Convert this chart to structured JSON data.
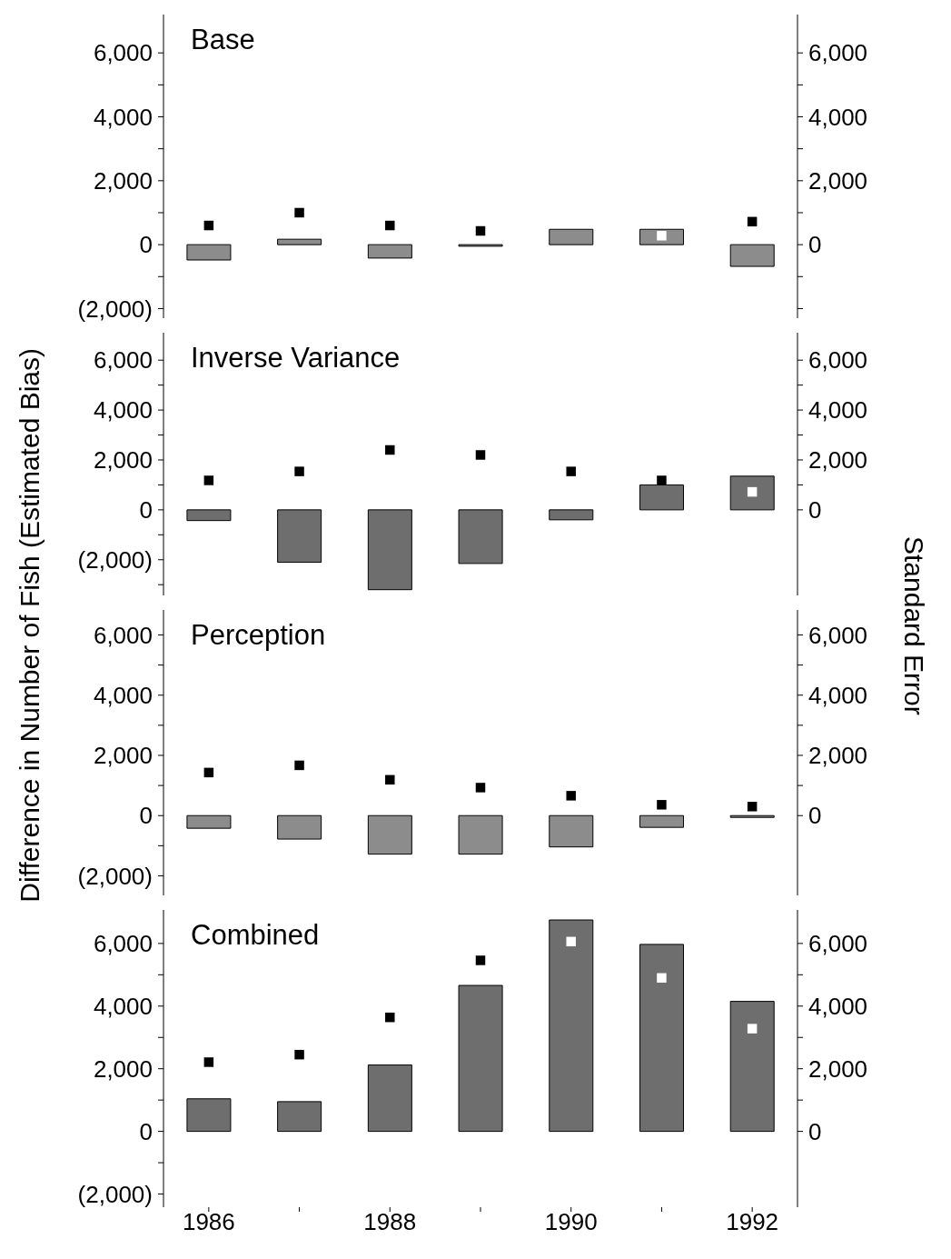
{
  "chart_data": [
    {
      "type": "bar",
      "title": "Base",
      "ylabel": "Difference in Number of Fish (Estimated Bias)",
      "y2label": "Standard Error",
      "categories": [
        "1986",
        null,
        "1988",
        null,
        "1990",
        null,
        "1992"
      ],
      "series": [
        {
          "color": "#8c8c8c",
          "values": [
            -480,
            170,
            -420,
            -50,
            480,
            480,
            -680
          ]
        },
        {
          "type": "scatter",
          "marker": "square",
          "color": "#000000",
          "colors": [
            "#000000",
            "#000000",
            "#000000",
            "#000000",
            "#000000",
            "#ffffff",
            "#000000"
          ],
          "values": [
            600,
            1000,
            600,
            430,
            null,
            280,
            720
          ]
        }
      ],
      "ylim": [
        -2300,
        7200
      ],
      "yticks": [
        {
          "value": -2000,
          "label": "(2,000)"
        },
        {
          "value": -1000,
          "label": null
        },
        {
          "value": 0,
          "label": "0"
        },
        {
          "value": 1000,
          "label": null
        },
        {
          "value": 2000,
          "label": "2,000"
        },
        {
          "value": 3000,
          "label": null
        },
        {
          "value": 4000,
          "label": "4,000"
        },
        {
          "value": 5000,
          "label": null
        },
        {
          "value": 6000,
          "label": "6,000"
        }
      ],
      "y2lim": [
        -2300,
        7200
      ],
      "y2ticks": [
        {
          "value": -2000,
          "label": null
        },
        {
          "value": -1000,
          "label": null
        },
        {
          "value": 0,
          "label": "0"
        },
        {
          "value": 1000,
          "label": null
        },
        {
          "value": 2000,
          "label": "2,000"
        },
        {
          "value": 3000,
          "label": null
        },
        {
          "value": 4000,
          "label": "4,000"
        },
        {
          "value": 5000,
          "label": null
        },
        {
          "value": 6000,
          "label": "6,000"
        }
      ],
      "tick_labels": "y"
    },
    {
      "type": "bar",
      "title": "Inverse Variance",
      "categories": [
        "1986",
        null,
        "1988",
        null,
        "1990",
        null,
        "1992"
      ],
      "series": [
        {
          "color": "#6e6e6e",
          "values": [
            -430,
            -2100,
            -3200,
            -2150,
            -400,
            1000,
            1350
          ]
        },
        {
          "type": "scatter",
          "marker": "square",
          "color": "#000000",
          "colors": [
            "#000000",
            "#000000",
            "#000000",
            "#000000",
            "#000000",
            "#000000",
            "#ffffff"
          ],
          "values": [
            1180,
            1540,
            2400,
            2200,
            1540,
            1180,
            720
          ]
        }
      ],
      "ylim": [
        -3430,
        7100
      ],
      "yticks": [
        {
          "value": -3000,
          "label": null
        },
        {
          "value": -2000,
          "label": "(2,000)"
        },
        {
          "value": -1000,
          "label": null
        },
        {
          "value": 0,
          "label": "0"
        },
        {
          "value": 1000,
          "label": null
        },
        {
          "value": 2000,
          "label": "2,000"
        },
        {
          "value": 3000,
          "label": null
        },
        {
          "value": 4000,
          "label": "4,000"
        },
        {
          "value": 5000,
          "label": null
        },
        {
          "value": 6000,
          "label": "6,000"
        }
      ],
      "y2lim": [
        -3430,
        7100
      ],
      "y2ticks": [
        {
          "value": 0,
          "label": "0"
        },
        {
          "value": 1000,
          "label": null
        },
        {
          "value": 2000,
          "label": "2,000"
        },
        {
          "value": 3000,
          "label": null
        },
        {
          "value": 4000,
          "label": "4,000"
        },
        {
          "value": 5000,
          "label": null
        },
        {
          "value": 6000,
          "label": "6,000"
        }
      ],
      "tick_labels": "y"
    },
    {
      "type": "bar",
      "title": "Perception",
      "categories": [
        "1986",
        null,
        "1988",
        null,
        "1990",
        null,
        "1992"
      ],
      "series": [
        {
          "color": "#8c8c8c",
          "values": [
            -420,
            -780,
            -1280,
            -1280,
            -1040,
            -390,
            -60
          ]
        },
        {
          "type": "scatter",
          "marker": "square",
          "color": "#000000",
          "values": [
            1430,
            1670,
            1190,
            930,
            660,
            360,
            300
          ]
        }
      ],
      "ylim": [
        -2650,
        6830
      ],
      "yticks": [
        {
          "value": -2000,
          "label": "(2,000)"
        },
        {
          "value": -1000,
          "label": null
        },
        {
          "value": 0,
          "label": "0"
        },
        {
          "value": 1000,
          "label": null
        },
        {
          "value": 2000,
          "label": "2,000"
        },
        {
          "value": 3000,
          "label": null
        },
        {
          "value": 4000,
          "label": "4,000"
        },
        {
          "value": 5000,
          "label": null
        },
        {
          "value": 6000,
          "label": "6,000"
        }
      ],
      "y2lim": [
        -2650,
        6830
      ],
      "y2ticks": [
        {
          "value": 0,
          "label": "0"
        },
        {
          "value": 1000,
          "label": null
        },
        {
          "value": 2000,
          "label": "2,000"
        },
        {
          "value": 3000,
          "label": null
        },
        {
          "value": 4000,
          "label": "4,000"
        },
        {
          "value": 5000,
          "label": null
        },
        {
          "value": 6000,
          "label": "6,000"
        }
      ],
      "tick_labels": "y"
    },
    {
      "type": "bar",
      "title": "Combined",
      "categories": [
        "1986",
        null,
        "1988",
        null,
        "1990",
        null,
        "1992"
      ],
      "series": [
        {
          "color": "#6e6e6e",
          "values": [
            1040,
            950,
            2120,
            4660,
            6750,
            5970,
            4150
          ]
        },
        {
          "type": "scatter",
          "marker": "square",
          "color": "#000000",
          "colors": [
            "#000000",
            "#000000",
            "#000000",
            "#000000",
            "#ffffff",
            "#ffffff",
            "#ffffff"
          ],
          "values": [
            2210,
            2450,
            3640,
            5460,
            6060,
            4900,
            3280
          ]
        }
      ],
      "ylim": [
        -2420,
        7070
      ],
      "yticks": [
        {
          "value": -2000,
          "label": "(2,000)"
        },
        {
          "value": -1000,
          "label": null
        },
        {
          "value": 0,
          "label": "0"
        },
        {
          "value": 1000,
          "label": null
        },
        {
          "value": 2000,
          "label": "2,000"
        },
        {
          "value": 3000,
          "label": null
        },
        {
          "value": 4000,
          "label": "4,000"
        },
        {
          "value": 5000,
          "label": null
        },
        {
          "value": 6000,
          "label": "6,000"
        }
      ],
      "y2lim": [
        -2420,
        7070
      ],
      "y2ticks": [
        {
          "value": 0,
          "label": "0"
        },
        {
          "value": 1000,
          "label": null
        },
        {
          "value": 2000,
          "label": "2,000"
        },
        {
          "value": 3000,
          "label": null
        },
        {
          "value": 4000,
          "label": "4,000"
        },
        {
          "value": 5000,
          "label": null
        },
        {
          "value": 6000,
          "label": "6,000"
        }
      ]
    }
  ]
}
